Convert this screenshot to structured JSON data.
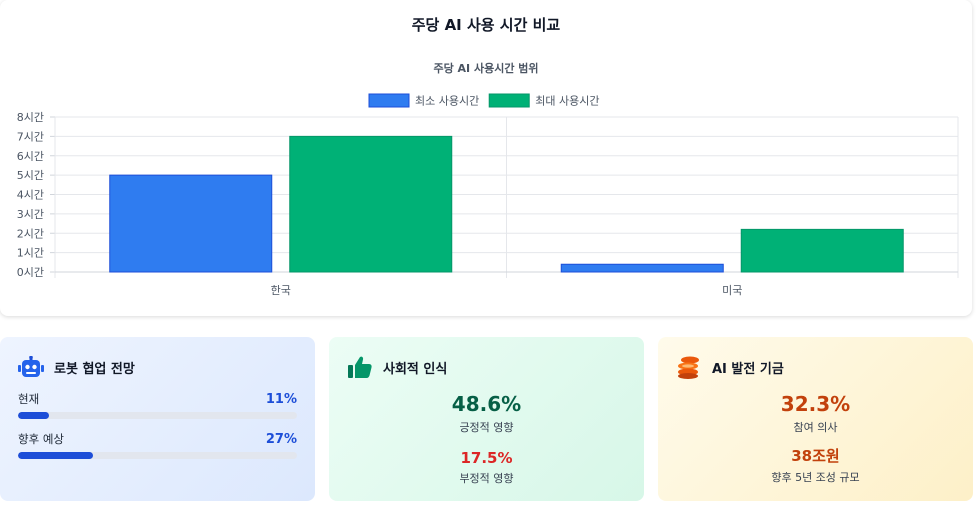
{
  "header": {
    "title": "주당 AI 사용 시간 비교"
  },
  "chart_data": {
    "type": "bar",
    "title": "주당 AI 사용시간 범위",
    "categories": [
      "한국",
      "미국"
    ],
    "series": [
      {
        "name": "최소 사용시간",
        "values": [
          5,
          0.4
        ],
        "color": "#2f7cf0"
      },
      {
        "name": "최대 사용시간",
        "values": [
          7,
          2.2
        ],
        "color": "#00b176"
      }
    ],
    "yticks": [
      "0시간",
      "1시간",
      "2시간",
      "3시간",
      "4시간",
      "5시간",
      "6시간",
      "7시간",
      "8시간"
    ],
    "ylim": [
      0,
      8
    ],
    "legend_position": "top",
    "grid": true
  },
  "cards": {
    "robot": {
      "title": "로봇 협업 전망",
      "icon": "robot-icon",
      "items": [
        {
          "label": "현재",
          "value": "11%",
          "progress": 0.11
        },
        {
          "label": "향후 예상",
          "value": "27%",
          "progress": 0.27
        }
      ]
    },
    "social": {
      "title": "사회적 인식",
      "icon": "thumbs-up-icon",
      "positive_value": "48.6%",
      "positive_label": "긍정적 영향",
      "negative_value": "17.5%",
      "negative_label": "부정적 영향",
      "colors": {
        "positive": "#065f46",
        "negative": "#dc2626"
      }
    },
    "fund": {
      "title": "AI 발전 기금",
      "icon": "coins-icon",
      "participation_value": "32.3%",
      "participation_label": "참여 의사",
      "amount_value": "38조원",
      "amount_label": "향후 5년 조성 규모",
      "colors": {
        "value": "#c2410c"
      }
    }
  }
}
